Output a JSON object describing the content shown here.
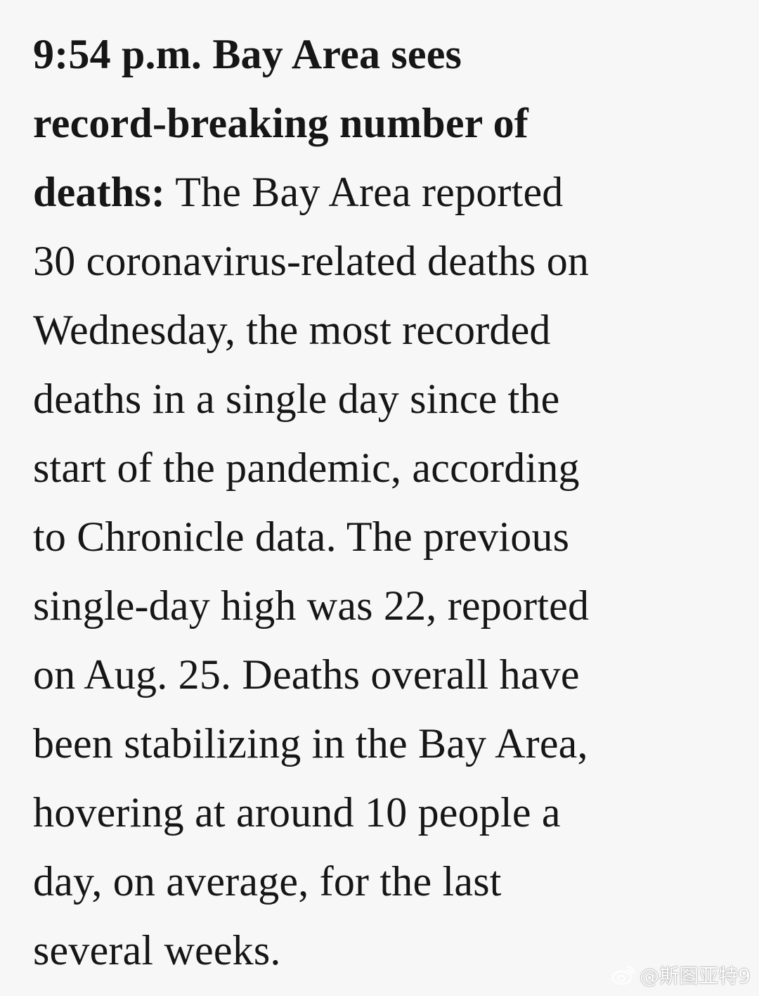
{
  "article": {
    "lines": [
      [
        {
          "text": "9:54 p.m. Bay Area sees",
          "bold": true
        }
      ],
      [
        {
          "text": "record-breaking number of",
          "bold": true
        }
      ],
      [
        {
          "text": "deaths:",
          "bold": true
        },
        {
          "text": " The Bay Area reported",
          "bold": false
        }
      ],
      [
        {
          "text": "30 coronavirus-related deaths on",
          "bold": false
        }
      ],
      [
        {
          "text": "Wednesday, the most recorded",
          "bold": false
        }
      ],
      [
        {
          "text": "deaths in a single day since the",
          "bold": false
        }
      ],
      [
        {
          "text": "start of the pandemic, according",
          "bold": false
        }
      ],
      [
        {
          "text": "to Chronicle data. The previous",
          "bold": false
        }
      ],
      [
        {
          "text": "single-day high was 22, reported",
          "bold": false
        }
      ],
      [
        {
          "text": "on Aug. 25. Deaths overall have",
          "bold": false
        }
      ],
      [
        {
          "text": "been stabilizing in the Bay Area,",
          "bold": false
        }
      ],
      [
        {
          "text": "hovering at around 10 people a",
          "bold": false
        }
      ],
      [
        {
          "text": "day, on average, for the last",
          "bold": false
        }
      ],
      [
        {
          "text": "several weeks.",
          "bold": false
        }
      ]
    ]
  },
  "watermark": {
    "icon": "weibo-icon",
    "text": "@斯图亚特9"
  }
}
